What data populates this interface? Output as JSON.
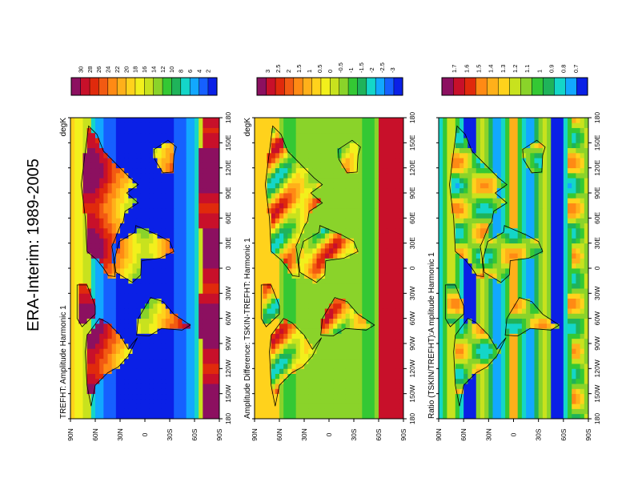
{
  "page": {
    "title": "ERA-Interim: 1989-2005"
  },
  "colors": {
    "panel1_bar": [
      "#0a20e6",
      "#1660ff",
      "#12a8ff",
      "#14d6c8",
      "#1fb35a",
      "#34c834",
      "#8ad32a",
      "#c8e21e",
      "#f2f01c",
      "#ffd21c",
      "#ffb01a",
      "#ff8a14",
      "#f25a12",
      "#e02a0c",
      "#c8102a",
      "#8c1060"
    ],
    "panel2_bar": [
      "#0a20e6",
      "#1660ff",
      "#12a8ff",
      "#14d6c8",
      "#1fb35a",
      "#34c834",
      "#8ad32a",
      "#c8e21e",
      "#f2f01c",
      "#ffd21c",
      "#ffb01a",
      "#ff8a14",
      "#f25a12",
      "#e02a0c",
      "#c8102a",
      "#8c1060"
    ],
    "panel3_bar": [
      "#0a20e6",
      "#12a8ff",
      "#14d6c8",
      "#1fb35a",
      "#34c834",
      "#8ad32a",
      "#c8e21e",
      "#ffd21c",
      "#ffb01a",
      "#ff8a14",
      "#e02a0c",
      "#c8102a",
      "#8c1060"
    ]
  },
  "chart_data": [
    {
      "type": "heatmap",
      "title": "TREFHT: Amplitude Harmonic 1",
      "units": "degK",
      "x_ticks": [
        "180",
        "150W",
        "120W",
        "90W",
        "60W",
        "30W",
        "0",
        "30E",
        "60E",
        "90E",
        "120E",
        "150E",
        "180"
      ],
      "y_ticks": [
        "90S",
        "60S",
        "30S",
        "0",
        "30N",
        "60N",
        "90N"
      ],
      "colorbar_labels": [
        "2",
        "4",
        "6",
        "8",
        "10",
        "12",
        "14",
        "16",
        "18",
        "20",
        "22",
        "24",
        "26",
        "28",
        "30"
      ]
    },
    {
      "type": "heatmap",
      "title": "Amplitude Difference: TSKIN-TREFHT: Harmonic 1",
      "units": "degK",
      "x_ticks": [
        "180",
        "150W",
        "120W",
        "90W",
        "60W",
        "30W",
        "0",
        "30E",
        "60E",
        "90E",
        "120E",
        "150E",
        "180"
      ],
      "y_ticks": [
        "90S",
        "60S",
        "30S",
        "0",
        "30N",
        "60N",
        "90N"
      ],
      "colorbar_labels": [
        "-3",
        "-2.5",
        "-2",
        "-1.5",
        "-1",
        "-0.5",
        "0",
        "0.5",
        "1",
        "1.5",
        "2",
        "2.5",
        "3"
      ]
    },
    {
      "type": "heatmap",
      "title": "Ratio (TSKIN/TREFHT):A mplitude Harmonic 1",
      "units": "",
      "x_ticks": [
        "180",
        "150W",
        "120W",
        "90W",
        "60W",
        "30W",
        "0",
        "30E",
        "60E",
        "90E",
        "120E",
        "150E",
        "180"
      ],
      "y_ticks": [
        "90S",
        "60S",
        "30S",
        "0",
        "30N",
        "60N",
        "90N"
      ],
      "colorbar_labels": [
        "0.7",
        "0.8",
        "0.9",
        "1",
        "1.1",
        "1.2",
        "1.3",
        "1.4",
        "1.5",
        "1.6",
        "1.7"
      ]
    }
  ]
}
